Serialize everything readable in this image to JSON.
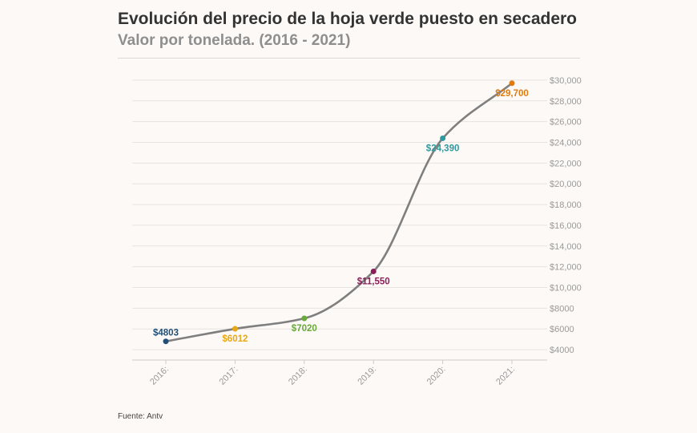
{
  "header": {
    "title": "Evolución del precio de la hoja verde puesto en secadero",
    "subtitle": "Valor por tonelada. (2016 - 2021)"
  },
  "footer": {
    "source": "Fuente: Antv"
  },
  "chart_data": {
    "type": "line",
    "title": "Evolución del precio de la hoja verde puesto en secadero",
    "subtitle": "Valor por tonelada. (2016 - 2021)",
    "xlabel": "",
    "ylabel": "",
    "categories": [
      "2016:",
      "2017:",
      "2018:",
      "2019:",
      "2020:",
      "2021:"
    ],
    "series": [
      {
        "values": [
          4803,
          6012,
          7020,
          11550,
          24390,
          29700
        ]
      }
    ],
    "data_labels": [
      "$4803",
      "$6012",
      "$7020",
      "$11,550",
      "$24,390",
      "$29,700"
    ],
    "point_colors": [
      "#1f4e79",
      "#e6a817",
      "#6aaa3a",
      "#8b1e5a",
      "#2e9a9e",
      "#e07b10"
    ],
    "line_color": "#7f7f7f",
    "y_ticks": [
      4000,
      6000,
      8000,
      10000,
      12000,
      14000,
      16000,
      18000,
      20000,
      22000,
      24000,
      26000,
      28000,
      30000
    ],
    "y_tick_labels": [
      "$4000",
      "$6000",
      "$8000",
      "$10,000",
      "$12,000",
      "$14,000",
      "$16,000",
      "$18,000",
      "$20,000",
      "$22,000",
      "$24,000",
      "$26,000",
      "$28,000",
      "$30,000"
    ],
    "ylim": [
      3000,
      31000
    ],
    "y_axis_position": "right",
    "grid": true,
    "legend": "none"
  }
}
